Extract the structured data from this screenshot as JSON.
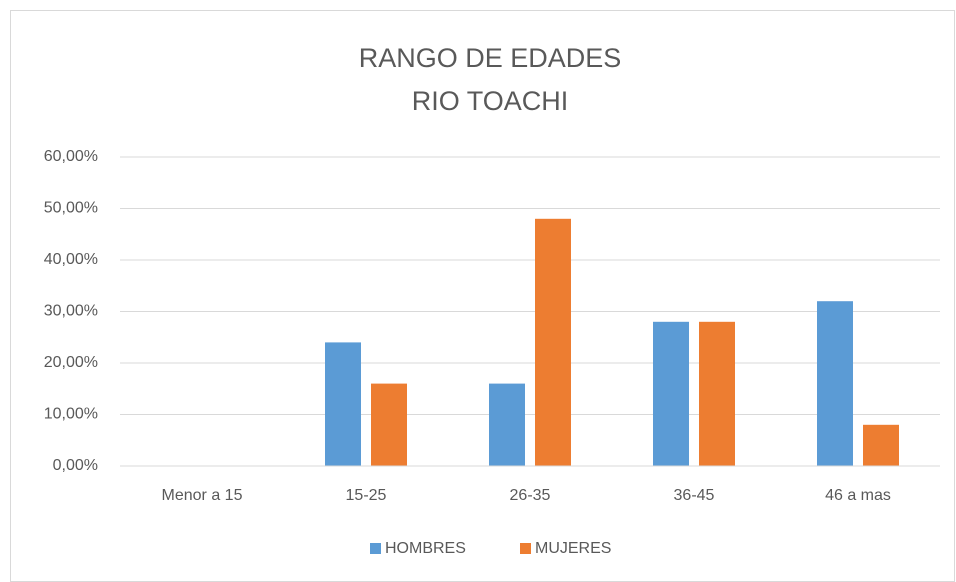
{
  "chart_data": {
    "type": "bar",
    "title": "RANGO DE EDADES",
    "subtitle": "RIO TOACHI",
    "categories": [
      "Menor a 15",
      "15-25",
      "26-35",
      "36-45",
      "46 a mas"
    ],
    "series": [
      {
        "name": "HOMBRES",
        "color": "#5b9bd5",
        "values": [
          0,
          24,
          16,
          28,
          32
        ]
      },
      {
        "name": "MUJERES",
        "color": "#ed7d31",
        "values": [
          0,
          16,
          48,
          28,
          8
        ]
      }
    ],
    "ylim": [
      0,
      60
    ],
    "yticks": [
      {
        "value": 0,
        "label": "0,00%"
      },
      {
        "value": 10,
        "label": "10,00%"
      },
      {
        "value": 20,
        "label": "20,00%"
      },
      {
        "value": 30,
        "label": "30,00%"
      },
      {
        "value": 40,
        "label": "40,00%"
      },
      {
        "value": 50,
        "label": "50,00%"
      },
      {
        "value": 60,
        "label": "60,00%"
      }
    ],
    "grid": true,
    "legend": "bottom"
  }
}
